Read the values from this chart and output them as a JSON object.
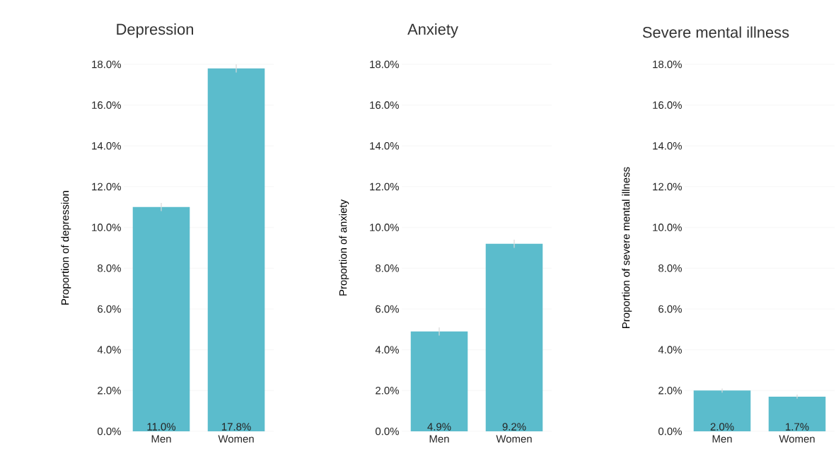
{
  "chart_data": [
    {
      "type": "bar",
      "title": "Depression",
      "ylabel": "Proportion of depression",
      "categories": [
        "Men",
        "Women"
      ],
      "values": [
        11.0,
        17.8
      ],
      "errors": [
        0.2,
        0.2
      ],
      "value_labels": [
        "11.0%",
        "17.8%"
      ],
      "color": "#5bbccc",
      "ylim": [
        0,
        18
      ],
      "yticks": [
        {
          "value": 0,
          "label": "0.0%"
        },
        {
          "value": 2,
          "label": "2.0%"
        },
        {
          "value": 4,
          "label": "4.0%"
        },
        {
          "value": 6,
          "label": "6.0%"
        },
        {
          "value": 8,
          "label": "8.0%"
        },
        {
          "value": 10,
          "label": "10.0%"
        },
        {
          "value": 12,
          "label": "12.0%"
        },
        {
          "value": 14,
          "label": "14.0%"
        },
        {
          "value": 16,
          "label": "16.0%"
        },
        {
          "value": 18,
          "label": "18.0%"
        }
      ],
      "grid": "y"
    },
    {
      "type": "bar",
      "title": "Anxiety",
      "ylabel": "Proportion of anxiety",
      "categories": [
        "Men",
        "Women"
      ],
      "values": [
        4.9,
        9.2
      ],
      "errors": [
        0.2,
        0.2
      ],
      "value_labels": [
        "4.9%",
        "9.2%"
      ],
      "color": "#5bbccc",
      "ylim": [
        0,
        18
      ],
      "yticks": [
        {
          "value": 0,
          "label": "0.0%"
        },
        {
          "value": 2,
          "label": "2.0%"
        },
        {
          "value": 4,
          "label": "4.0%"
        },
        {
          "value": 6,
          "label": "6.0%"
        },
        {
          "value": 8,
          "label": "8.0%"
        },
        {
          "value": 10,
          "label": "10.0%"
        },
        {
          "value": 12,
          "label": "12.0%"
        },
        {
          "value": 14,
          "label": "14.0%"
        },
        {
          "value": 16,
          "label": "16.0%"
        },
        {
          "value": 18,
          "label": "18.0%"
        }
      ],
      "grid": "y"
    },
    {
      "type": "bar",
      "title": "Severe mental illness",
      "ylabel": "Proportion of severe mental illness",
      "categories": [
        "Men",
        "Women"
      ],
      "values": [
        2.0,
        1.7
      ],
      "errors": [
        0.1,
        0.1
      ],
      "value_labels": [
        "2.0%",
        "1.7%"
      ],
      "color": "#5bbccc",
      "ylim": [
        0,
        18
      ],
      "yticks": [
        {
          "value": 0,
          "label": "0.0%"
        },
        {
          "value": 2,
          "label": "2.0%"
        },
        {
          "value": 4,
          "label": "4.0%"
        },
        {
          "value": 6,
          "label": "6.0%"
        },
        {
          "value": 8,
          "label": "8.0%"
        },
        {
          "value": 10,
          "label": "10.0%"
        },
        {
          "value": 12,
          "label": "12.0%"
        },
        {
          "value": 14,
          "label": "14.0%"
        },
        {
          "value": 16,
          "label": "16.0%"
        },
        {
          "value": 18,
          "label": "18.0%"
        }
      ],
      "grid": "y"
    }
  ]
}
